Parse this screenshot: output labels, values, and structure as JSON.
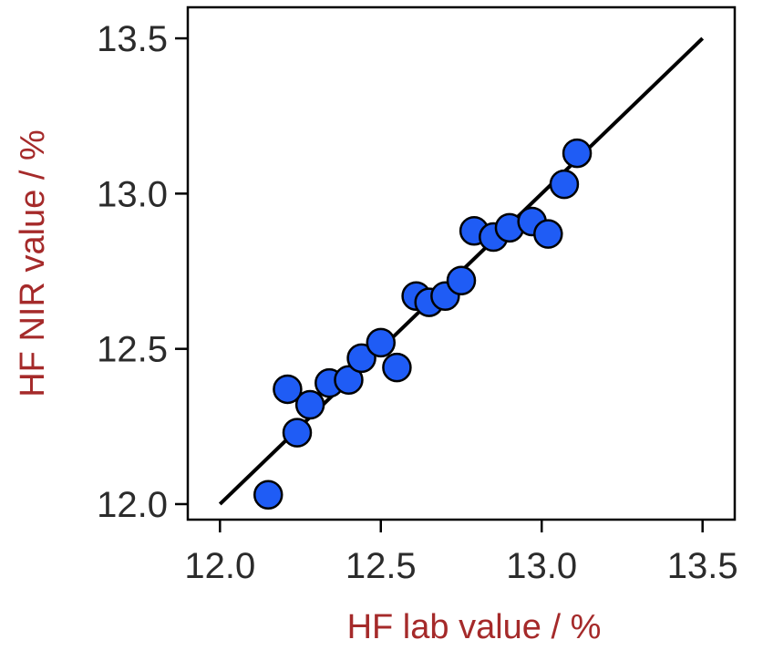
{
  "chart_data": {
    "type": "scatter",
    "title": "",
    "xlabel": "HF lab value / %",
    "ylabel": "HF NIR value / %",
    "xlim": [
      11.9,
      13.6
    ],
    "ylim": [
      11.95,
      13.6
    ],
    "xticks": [
      12.0,
      12.5,
      13.0,
      13.5
    ],
    "yticks": [
      12.0,
      12.5,
      13.0,
      13.5
    ],
    "xtick_labels": [
      "12.0",
      "12.5",
      "13.0",
      "13.5"
    ],
    "ytick_labels": [
      "12.0",
      "12.5",
      "13.0",
      "13.5"
    ],
    "grid": false,
    "legend": "none",
    "label_color": "#a52a2a",
    "marker_color": "#1f5cf5",
    "marker_edge_color": "#000000",
    "line_color": "#000000",
    "series": [
      {
        "name": "",
        "points": [
          {
            "x": 12.15,
            "y": 12.03
          },
          {
            "x": 12.24,
            "y": 12.23
          },
          {
            "x": 12.21,
            "y": 12.37
          },
          {
            "x": 12.28,
            "y": 12.32
          },
          {
            "x": 12.34,
            "y": 12.39
          },
          {
            "x": 12.4,
            "y": 12.4
          },
          {
            "x": 12.44,
            "y": 12.47
          },
          {
            "x": 12.5,
            "y": 12.52
          },
          {
            "x": 12.55,
            "y": 12.44
          },
          {
            "x": 12.61,
            "y": 12.67
          },
          {
            "x": 12.65,
            "y": 12.65
          },
          {
            "x": 12.7,
            "y": 12.67
          },
          {
            "x": 12.75,
            "y": 12.72
          },
          {
            "x": 12.79,
            "y": 12.88
          },
          {
            "x": 12.85,
            "y": 12.86
          },
          {
            "x": 12.9,
            "y": 12.89
          },
          {
            "x": 12.97,
            "y": 12.91
          },
          {
            "x": 13.02,
            "y": 12.87
          },
          {
            "x": 13.07,
            "y": 13.03
          },
          {
            "x": 13.11,
            "y": 13.13
          }
        ]
      }
    ],
    "reference_line": {
      "x": [
        12.0,
        13.5
      ],
      "y": [
        12.0,
        13.5
      ]
    }
  }
}
